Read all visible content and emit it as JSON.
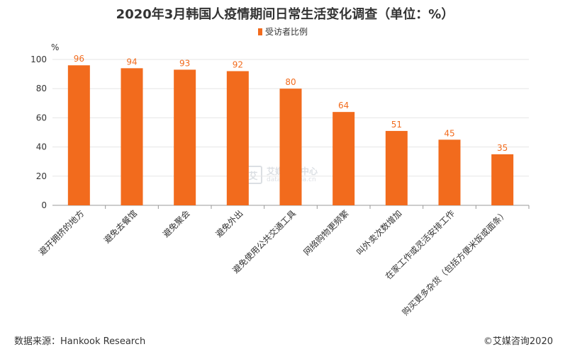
{
  "chart_data": {
    "type": "bar",
    "title": "2020年3月韩国人疫情期间日常生活变化调查（单位：%）",
    "unit_label": "%",
    "categories": [
      "避开拥挤的地方",
      "避免去餐馆",
      "避免聚会",
      "避免外出",
      "避免使用公共交通工具",
      "网络购物更频繁",
      "叫外卖次数增加",
      "在家工作或灵活安排工作",
      "购买更多杂货（包括方便米饭或面条）"
    ],
    "series": [
      {
        "name": "受访者比例",
        "values": [
          96,
          94,
          93,
          92,
          80,
          64,
          51,
          45,
          35
        ],
        "color": "#f26b1d"
      }
    ],
    "ylim": [
      0,
      100
    ],
    "yticks": [
      0,
      20,
      40,
      60,
      80,
      100
    ],
    "grid": true,
    "legend_position": "top-center",
    "label_color": "#f26b1d"
  },
  "footer": {
    "source": "数据来源：Hankook Research",
    "copyright": "©艾媒咨询2020"
  },
  "watermark": {
    "logo_glyph": "艾",
    "name": "艾媒数据中心",
    "url": "data.iimedia.cn"
  }
}
